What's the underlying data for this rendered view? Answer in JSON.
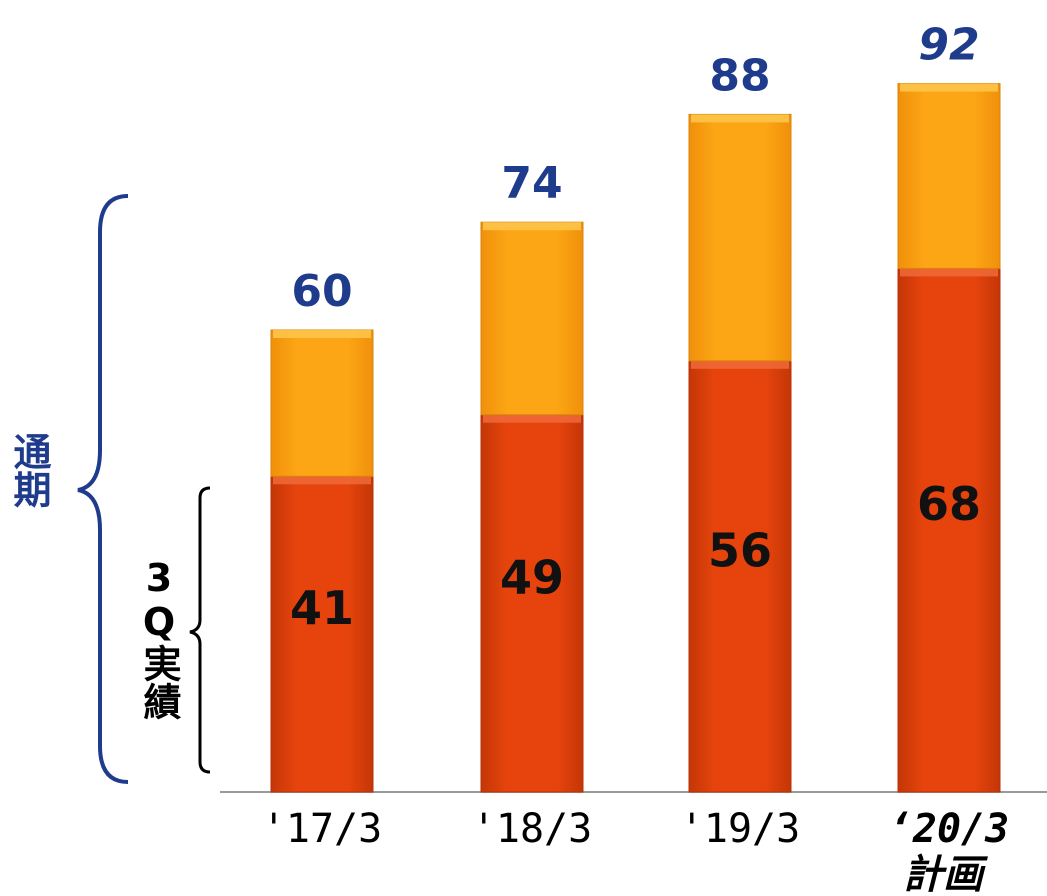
{
  "chart_data": {
    "type": "bar",
    "stacked": true,
    "categories": [
      "'17/3",
      "'18/3",
      "'19/3",
      "‘20/3"
    ],
    "category_notes": [
      "",
      "",
      "",
      "計画"
    ],
    "series": [
      {
        "name": "3Q実績",
        "values": [
          41,
          49,
          56,
          68
        ],
        "color": "#e2410b"
      },
      {
        "name": "",
        "values": [
          19,
          25,
          32,
          24
        ],
        "color": "#fba312"
      }
    ],
    "totals": [
      60,
      74,
      88,
      92
    ],
    "totals_italic": [
      false,
      false,
      false,
      true
    ],
    "ylim": [
      0,
      100
    ],
    "grid": false,
    "title": "",
    "xlabel": "",
    "ylabel": ""
  },
  "annotations": {
    "full_year_label": "通期",
    "q3_label_num": "3",
    "q3_label_q": "Q",
    "q3_label_text": "実績"
  },
  "colors": {
    "lower": "#e2410b",
    "upper": "#fba312",
    "label_blue": "#1f3b8c",
    "brace_blue": "#1f3b8c"
  }
}
